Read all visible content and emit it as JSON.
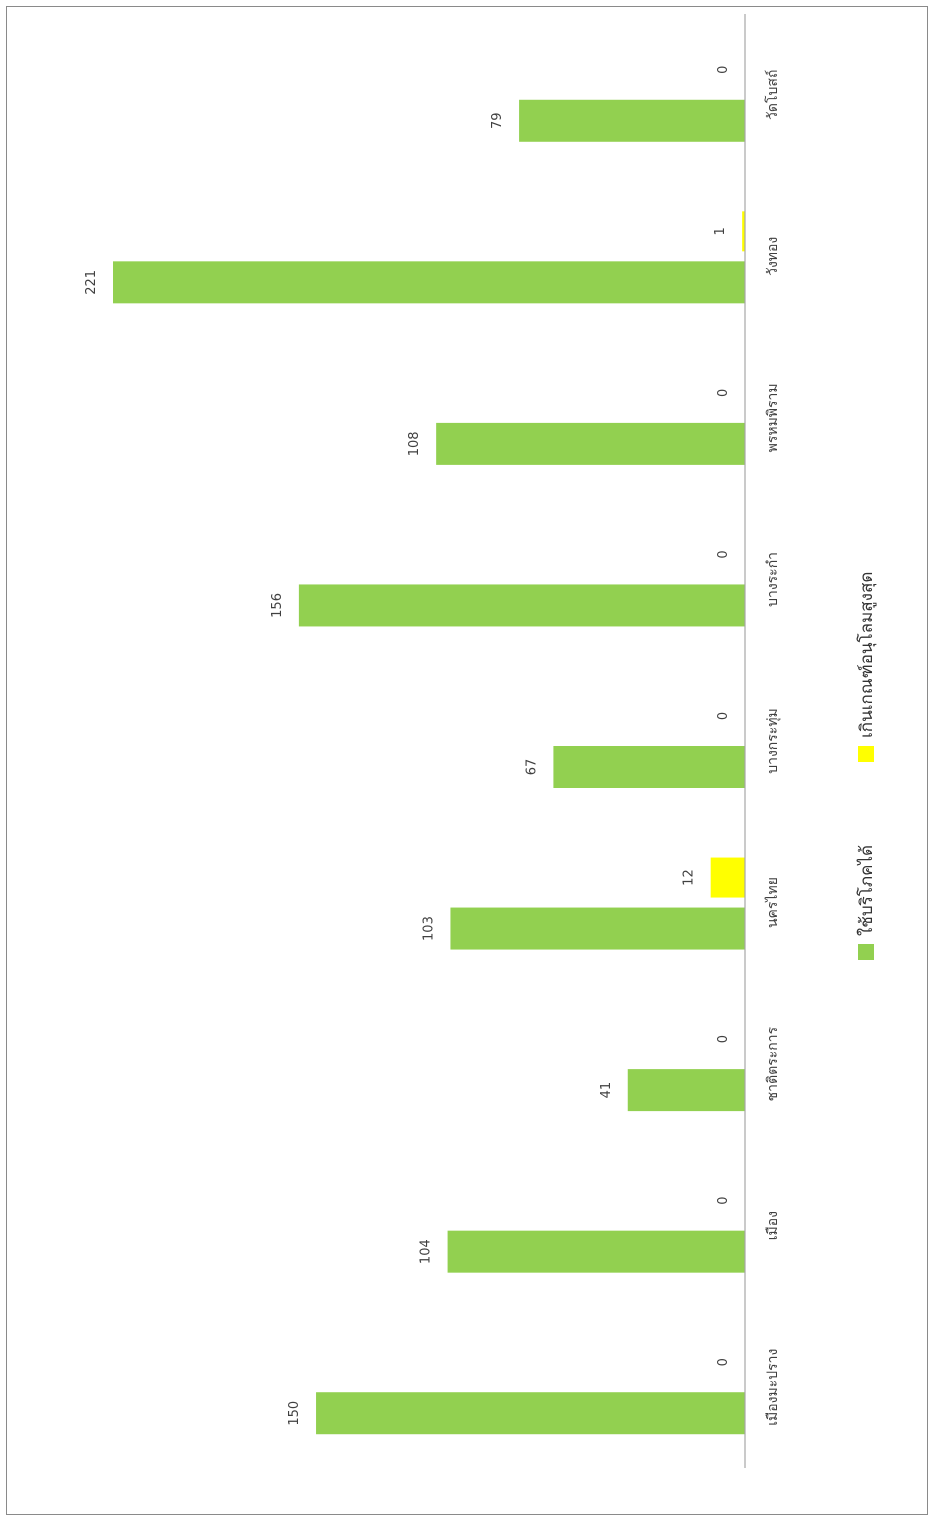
{
  "chart_data": {
    "type": "bar",
    "orientation": "horizontal",
    "categories": [
      "เมืองมะปราง",
      "เมือง",
      "ชาติตระการ",
      "นครไทย",
      "บางกระทุ่ม",
      "บางระกำ",
      "พรหมพิราม",
      "วังทอง",
      "วัดโบสถ์"
    ],
    "series": [
      {
        "name": "ใช้บริโภคได้",
        "color": "#92d050",
        "values": [
          150,
          104,
          41,
          103,
          67,
          156,
          108,
          221,
          79
        ]
      },
      {
        "name": "เกินเกณฑ์อนุโลมสูงสุด",
        "color": "#ffff00",
        "values": [
          0,
          0,
          0,
          12,
          0,
          0,
          0,
          1,
          0
        ]
      }
    ],
    "data_labels": true,
    "legend_position": "bottom",
    "grid": false,
    "xlim": [
      0,
      230
    ]
  }
}
